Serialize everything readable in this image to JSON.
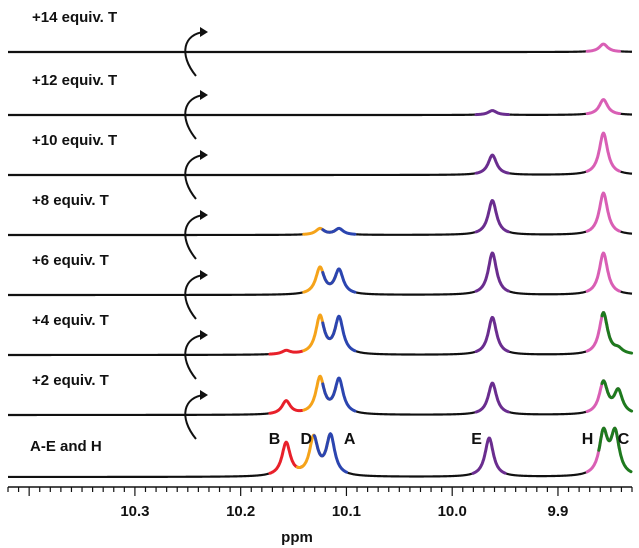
{
  "chart_data": {
    "type": "line",
    "xlabel": "ppm",
    "ylabel": "",
    "xlim": [
      10.42,
      9.83
    ],
    "x_reversed": true,
    "x_ticks": [
      {
        "value": 10.3,
        "label": "10.3"
      },
      {
        "value": 10.2,
        "label": "10.2"
      },
      {
        "value": 10.1,
        "label": "10.1"
      },
      {
        "value": 10.0,
        "label": "10.0"
      },
      {
        "value": 9.9,
        "label": "9.9"
      }
    ],
    "peak_colors": {
      "A": "#2b45b0",
      "B": "#e8202a",
      "C": "#1e7a1e",
      "D": "#f5a31a",
      "E": "#6a2d8f",
      "H": "#d95fb5"
    },
    "peak_labels": [
      {
        "id": "B",
        "text": "B",
        "x": 10.168
      },
      {
        "id": "D",
        "text": "D",
        "x": 10.138
      },
      {
        "id": "A",
        "text": "A",
        "x": 10.097
      },
      {
        "id": "E",
        "text": "E",
        "x": 9.977
      },
      {
        "id": "H",
        "text": "H",
        "x": 9.872
      },
      {
        "id": "C",
        "text": "C",
        "x": 9.838
      }
    ],
    "series": [
      {
        "name": "+14 equiv. T",
        "peaks": [
          {
            "id": "H",
            "x": 9.857,
            "height": 0.18
          }
        ]
      },
      {
        "name": "+12 equiv. T",
        "peaks": [
          {
            "id": "E",
            "x": 9.962,
            "height": 0.1
          },
          {
            "id": "H",
            "x": 9.857,
            "height": 0.35
          }
        ]
      },
      {
        "name": "+10 equiv. T",
        "peaks": [
          {
            "id": "E",
            "x": 9.962,
            "height": 0.45
          },
          {
            "id": "H",
            "x": 9.857,
            "height": 0.95
          }
        ]
      },
      {
        "name": "+8 equiv. T",
        "peaks": [
          {
            "id": "D",
            "x": 10.125,
            "height": 0.14
          },
          {
            "id": "A",
            "x": 10.107,
            "height": 0.14
          },
          {
            "id": "E",
            "x": 9.962,
            "height": 0.78
          },
          {
            "id": "H",
            "x": 9.857,
            "height": 0.95
          }
        ]
      },
      {
        "name": "+6 equiv. T",
        "peaks": [
          {
            "id": "D",
            "x": 10.125,
            "height": 0.6
          },
          {
            "id": "A",
            "x": 10.107,
            "height": 0.55
          },
          {
            "id": "E",
            "x": 9.962,
            "height": 0.95
          },
          {
            "id": "H",
            "x": 9.857,
            "height": 0.95
          }
        ]
      },
      {
        "name": "+4 equiv. T",
        "peaks": [
          {
            "id": "B",
            "x": 10.157,
            "height": 0.08
          },
          {
            "id": "D",
            "x": 10.125,
            "height": 0.85
          },
          {
            "id": "A",
            "x": 10.107,
            "height": 0.82
          },
          {
            "id": "E",
            "x": 9.962,
            "height": 0.85
          },
          {
            "id": "H",
            "x": 9.857,
            "height": 0.95
          },
          {
            "id": "C",
            "x": 9.843,
            "height": 0.1
          }
        ]
      },
      {
        "name": "+2 equiv. T",
        "peaks": [
          {
            "id": "B",
            "x": 10.157,
            "height": 0.3
          },
          {
            "id": "D",
            "x": 10.125,
            "height": 0.82
          },
          {
            "id": "A",
            "x": 10.107,
            "height": 0.78
          },
          {
            "id": "E",
            "x": 9.962,
            "height": 0.72
          },
          {
            "id": "H",
            "x": 9.857,
            "height": 0.72
          },
          {
            "id": "C",
            "x": 9.843,
            "height": 0.52
          }
        ]
      },
      {
        "name": "A-E and H",
        "peaks": [
          {
            "id": "B",
            "x": 10.157,
            "height": 0.75
          },
          {
            "id": "D",
            "x": 10.131,
            "height": 0.85
          },
          {
            "id": "A",
            "x": 10.115,
            "height": 0.9
          },
          {
            "id": "E",
            "x": 9.965,
            "height": 0.88
          },
          {
            "id": "H",
            "x": 9.857,
            "height": 0.95
          },
          {
            "id": "C",
            "x": 9.846,
            "height": 0.95
          }
        ]
      }
    ]
  }
}
